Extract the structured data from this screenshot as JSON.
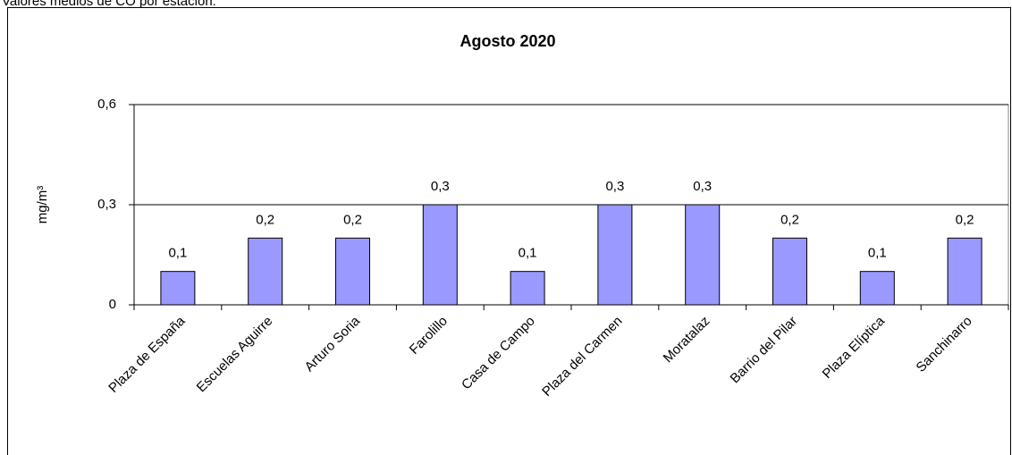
{
  "page_heading": "Valores medios de CO por estación:",
  "chart_data": {
    "type": "bar",
    "title": "Agosto 2020",
    "y_label": "mg/m³",
    "categories": [
      "Plaza de España",
      "Escuelas Aguirre",
      "Arturo Soria",
      "Farolillo",
      "Casa de Campo",
      "Plaza del Carmen",
      "Moratalaz",
      "Barrio del Pilar",
      "Plaza Elíptica",
      "Sanchinarro"
    ],
    "values": [
      0.1,
      0.2,
      0.2,
      0.3,
      0.1,
      0.3,
      0.3,
      0.2,
      0.1,
      0.2
    ],
    "value_labels": [
      "0,1",
      "0,2",
      "0,2",
      "0,3",
      "0,1",
      "0,3",
      "0,3",
      "0,2",
      "0,1",
      "0,2"
    ],
    "color": "#9999ff",
    "ylim": [
      0,
      0.6
    ],
    "yticks": [
      0,
      {
        "value": 0.3,
        "label": "0,3"
      },
      {
        "value": 0.6,
        "label": "0,6"
      }
    ],
    "grid": true
  }
}
